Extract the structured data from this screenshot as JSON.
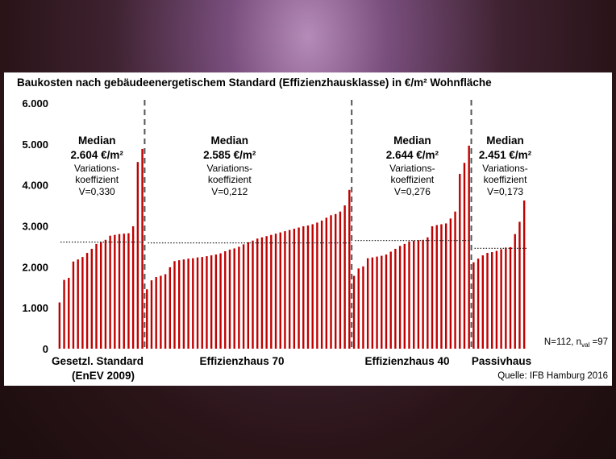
{
  "chart_data": {
    "type": "bar",
    "title": "Baukosten nach gebäudeenergetischem Standard (Effizienzhausklasse) in €/m² Wohnfläche",
    "ylim": [
      0,
      6000
    ],
    "yticks": [
      "0",
      "1.000",
      "2.000",
      "3.000",
      "4.000",
      "5.000",
      "6.000"
    ],
    "ytick_values": [
      0,
      1000,
      2000,
      3000,
      4000,
      5000,
      6000
    ],
    "bar_color": "#c00000",
    "groups": [
      {
        "name": "Gesetzl. Standard",
        "name_line2": "(EnEV 2009)",
        "median_label": "Median",
        "median_text": "2.604 €/m²",
        "median_value": 2604,
        "var_line1": "Variations-",
        "var_line2": "koeffizient",
        "var_line3": "V=0,330",
        "values": [
          1130,
          1680,
          1730,
          2130,
          2180,
          2240,
          2340,
          2440,
          2560,
          2600,
          2660,
          2760,
          2780,
          2800,
          2810,
          2820,
          2990,
          4560,
          4880
        ]
      },
      {
        "name": "Effizienzhaus 70",
        "name_line2": "",
        "median_label": "Median",
        "median_text": "2.585 €/m²",
        "median_value": 2585,
        "var_line1": "Variations-",
        "var_line2": "koeffizient",
        "var_line3": "V=0,212",
        "values": [
          1450,
          1670,
          1750,
          1780,
          1820,
          1990,
          2140,
          2160,
          2180,
          2200,
          2210,
          2230,
          2240,
          2260,
          2280,
          2300,
          2330,
          2380,
          2420,
          2450,
          2490,
          2550,
          2600,
          2640,
          2690,
          2720,
          2750,
          2780,
          2810,
          2840,
          2870,
          2900,
          2930,
          2960,
          2990,
          3010,
          3040,
          3080,
          3130,
          3200,
          3260,
          3290,
          3350,
          3500,
          3880
        ]
      },
      {
        "name": "Effizienzhaus 40",
        "name_line2": "",
        "median_label": "Median",
        "median_text": "2.644 €/m²",
        "median_value": 2644,
        "var_line1": "Variations-",
        "var_line2": "koeffizient",
        "var_line3": "V=0,276",
        "values": [
          1780,
          1960,
          2010,
          2210,
          2230,
          2250,
          2270,
          2300,
          2370,
          2440,
          2510,
          2560,
          2620,
          2640,
          2650,
          2660,
          2720,
          2990,
          3020,
          3040,
          3060,
          3180,
          3350,
          4270,
          4540,
          4960
        ]
      },
      {
        "name": "Passivhaus",
        "name_line2": "",
        "median_label": "Median",
        "median_text": "2.451 €/m²",
        "median_value": 2451,
        "var_line1": "Variations-",
        "var_line2": "koeffizient",
        "var_line3": "V=0,173",
        "values": [
          2110,
          2200,
          2280,
          2340,
          2360,
          2390,
          2430,
          2470,
          2480,
          2800,
          3100,
          3620
        ]
      }
    ],
    "n_note_prefix": "N=112, n",
    "n_note_sub": "val",
    "n_note_suffix": " =97",
    "source": "Quelle: IFB Hamburg 2016"
  }
}
